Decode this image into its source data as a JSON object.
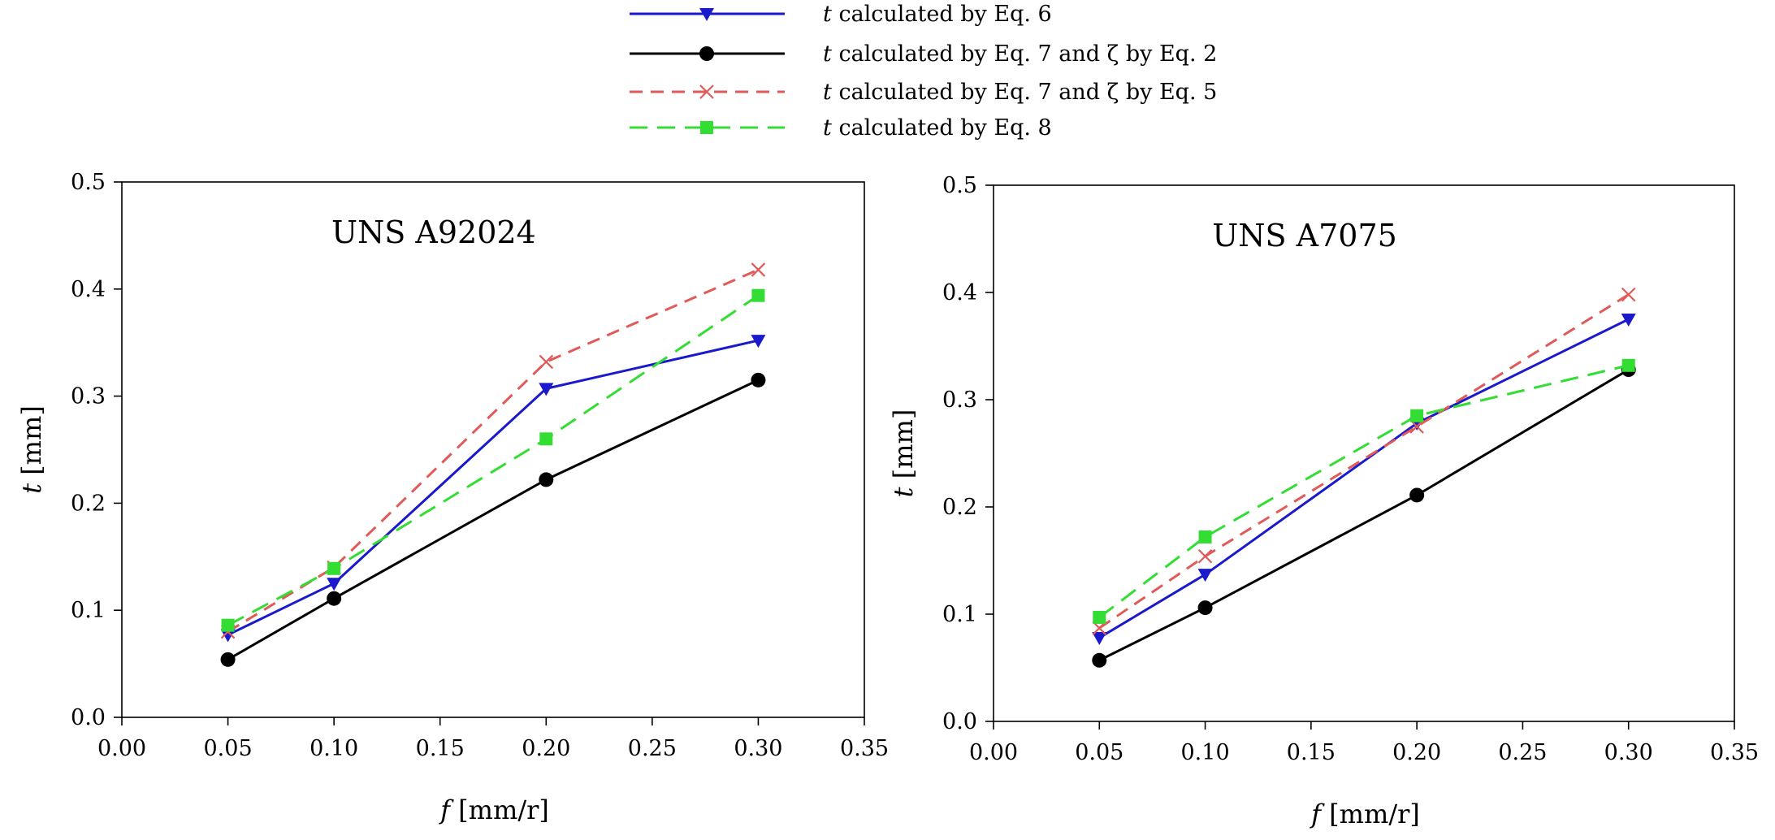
{
  "legend": [
    {
      "series": "eq6",
      "var": "t",
      "text": " calculated by Eq. 6"
    },
    {
      "series": "eq7_zeta2",
      "var": "t",
      "text": " calculated by Eq. 7 and ζ  by Eq. 2"
    },
    {
      "series": "eq7_zeta5",
      "var": "t",
      "text": " calculated by Eq. 7 and ζ  by Eq. 5"
    },
    {
      "series": "eq8",
      "var": "t",
      "text": " calculated by Eq. 8"
    }
  ],
  "styles": {
    "eq6": {
      "color": "#1a1acc",
      "dash": "",
      "marker": "triangle-down"
    },
    "eq7_zeta2": {
      "color": "#000000",
      "dash": "",
      "marker": "circle"
    },
    "eq7_zeta5": {
      "color": "#e05a5a",
      "dash": "16,10",
      "marker": "x"
    },
    "eq8": {
      "color": "#33dd33",
      "dash": "22,12",
      "marker": "square"
    }
  },
  "chart_data": [
    {
      "type": "line",
      "title": "UNS A92024",
      "xlabel_var": "f",
      "xlabel_unit": " [mm/r]",
      "ylabel_var": "t",
      "ylabel_unit": " [mm]",
      "xlim": [
        0.0,
        0.35
      ],
      "ylim": [
        0.0,
        0.5
      ],
      "xticks": [
        "0.00",
        "0.05",
        "0.10",
        "0.15",
        "0.20",
        "0.25",
        "0.30",
        "0.35"
      ],
      "yticks": [
        "0.0",
        "0.1",
        "0.2",
        "0.3",
        "0.4",
        "0.5"
      ],
      "x": [
        0.05,
        0.1,
        0.2,
        0.3
      ],
      "series": [
        {
          "key": "eq6",
          "values": [
            0.077,
            0.125,
            0.307,
            0.352
          ]
        },
        {
          "key": "eq7_zeta2",
          "values": [
            0.054,
            0.111,
            0.222,
            0.315
          ]
        },
        {
          "key": "eq7_zeta5",
          "values": [
            0.08,
            0.14,
            0.332,
            0.418
          ]
        },
        {
          "key": "eq8",
          "values": [
            0.086,
            0.139,
            0.26,
            0.394
          ]
        }
      ]
    },
    {
      "type": "line",
      "title": "UNS A7075",
      "xlabel_var": "f",
      "xlabel_unit": " [mm/r]",
      "ylabel_var": "t",
      "ylabel_unit": " [mm]",
      "xlim": [
        0.0,
        0.35
      ],
      "ylim": [
        0.0,
        0.5
      ],
      "xticks": [
        "0.00",
        "0.05",
        "0.10",
        "0.15",
        "0.20",
        "0.25",
        "0.30",
        "0.35"
      ],
      "yticks": [
        "0.0",
        "0.1",
        "0.2",
        "0.3",
        "0.4",
        "0.5"
      ],
      "x": [
        0.05,
        0.1,
        0.2,
        0.3
      ],
      "series": [
        {
          "key": "eq6",
          "values": [
            0.078,
            0.137,
            0.278,
            0.375
          ]
        },
        {
          "key": "eq7_zeta2",
          "values": [
            0.057,
            0.106,
            0.211,
            0.328
          ]
        },
        {
          "key": "eq7_zeta5",
          "values": [
            0.087,
            0.154,
            0.275,
            0.398
          ]
        },
        {
          "key": "eq8",
          "values": [
            0.097,
            0.172,
            0.285,
            0.332
          ]
        }
      ]
    }
  ]
}
